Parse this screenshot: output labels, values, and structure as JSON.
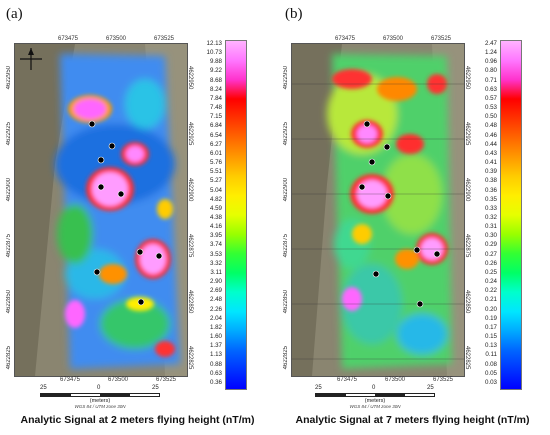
{
  "panels": [
    {
      "label": "(a)",
      "caption": "Analytic Signal at 2 meters flying height (nT/m)",
      "top_ticks": [
        "673475",
        "673500",
        "673525"
      ],
      "bottom_ticks": [
        "673475",
        "673500",
        "673525"
      ],
      "left_ticks": [
        "4622950",
        "4622925",
        "4622900",
        "4622875",
        "4622850",
        "4622825"
      ],
      "right_ticks": [
        "4622950",
        "4622925",
        "4622900",
        "4622875",
        "4622850",
        "4622825"
      ],
      "scale_numbers": [
        "25",
        "0",
        "25"
      ],
      "scale_unit": "(meters)",
      "projection": "WGS 84 / UTM zone 30N",
      "colorbar_labels": [
        "12.13",
        "10.73",
        "9.88",
        "9.22",
        "8.68",
        "8.24",
        "7.84",
        "7.48",
        "7.15",
        "6.84",
        "6.54",
        "6.27",
        "6.01",
        "5.76",
        "5.51",
        "5.27",
        "5.04",
        "4.82",
        "4.59",
        "4.38",
        "4.16",
        "3.95",
        "3.74",
        "3.53",
        "3.32",
        "3.11",
        "2.90",
        "2.69",
        "2.48",
        "2.26",
        "2.04",
        "1.82",
        "1.60",
        "1.37",
        "1.13",
        "0.88",
        "0.63",
        "0.36"
      ]
    },
    {
      "label": "(b)",
      "caption": "Analytic Signal at 7 meters flying height (nT/m)",
      "top_ticks": [
        "673475",
        "673500",
        "673525"
      ],
      "bottom_ticks": [
        "673475",
        "673500",
        "673525"
      ],
      "left_ticks": [
        "4622950",
        "4622925",
        "4622900",
        "4622875",
        "4622850",
        "4622825"
      ],
      "right_ticks": [
        "4622950",
        "4622925",
        "4622900",
        "4622875",
        "4622850",
        "4622825"
      ],
      "scale_numbers": [
        "25",
        "0",
        "25"
      ],
      "scale_unit": "(meters)",
      "projection": "WGS 84 / UTM zone 30N",
      "colorbar_labels": [
        "2.47",
        "1.24",
        "0.96",
        "0.80",
        "0.71",
        "0.63",
        "0.57",
        "0.53",
        "0.50",
        "0.48",
        "0.46",
        "0.44",
        "0.43",
        "0.41",
        "0.39",
        "0.38",
        "0.36",
        "0.35",
        "0.33",
        "0.32",
        "0.31",
        "0.30",
        "0.29",
        "0.27",
        "0.26",
        "0.25",
        "0.24",
        "0.22",
        "0.21",
        "0.20",
        "0.19",
        "0.17",
        "0.15",
        "0.13",
        "0.11",
        "0.08",
        "0.05",
        "0.03"
      ]
    }
  ],
  "colors": {
    "colorbar_top": "#ff99ff",
    "colorbar_mid": "#ffff00",
    "colorbar_bottom": "#0000ff",
    "marker": "#000000"
  }
}
